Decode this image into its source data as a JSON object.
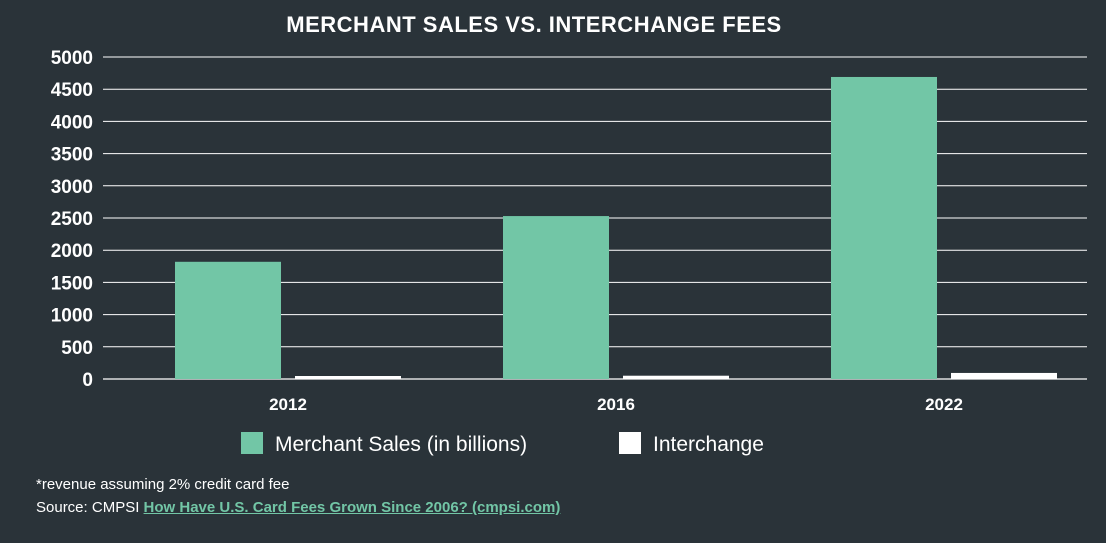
{
  "chart_data": {
    "type": "bar",
    "title": "MERCHANT SALES VS. INTERCHANGE FEES",
    "categories": [
      "2012",
      "2016",
      "2022"
    ],
    "series": [
      {
        "name": "Merchant Sales (in billions)",
        "color": "#72c6a6",
        "values": [
          1820,
          2530,
          4690
        ]
      },
      {
        "name": "Interchange",
        "color": "#ffffff",
        "values": [
          36,
          51,
          94
        ]
      }
    ],
    "ylim": [
      0,
      5000
    ],
    "yticks": [
      0,
      500,
      1000,
      1500,
      2000,
      2500,
      3000,
      3500,
      4000,
      4500,
      5000
    ],
    "xlabel": "",
    "ylabel": "",
    "grid": true,
    "legend": "bottom-center"
  },
  "footer": {
    "note": "*revenue assuming 2% credit card fee",
    "source_prefix": "Source: CMPSI ",
    "source_link": "How Have U.S. Card Fees Grown Since 2006? (cmpsi.com)"
  }
}
